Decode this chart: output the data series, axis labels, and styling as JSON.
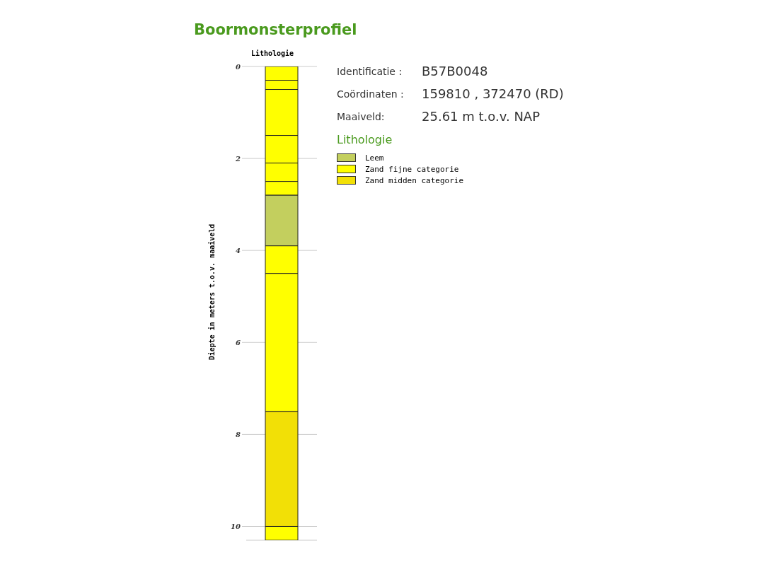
{
  "chart_data": {
    "type": "bar",
    "title": "Boormonsterprofiel",
    "xlabel": "Lithologie",
    "ylabel": "Diepte in meters t.o.v. maaiveld",
    "legend_title": "Lithologie",
    "annotations": [
      "Identificatie :",
      "B57B0048",
      "Coördinaten :",
      "159810 , 372470 (RD)",
      "Maaiveld:",
      "25.61 m t.o.v. NAP"
    ],
    "categories": [
      null
    ],
    "stacked": true,
    "ylim": [
      10.3,
      0
    ],
    "yticks": [
      0,
      2,
      4,
      6,
      8,
      10
    ],
    "grid": "y",
    "legend": "right",
    "series": [
      {
        "name": "Zand fijne categorie",
        "color": "#ffff00",
        "values": [
          0.3
        ]
      },
      {
        "color": "#ffff00",
        "values": [
          0.2
        ]
      },
      {
        "color": "#ffff00",
        "values": [
          1.0
        ]
      },
      {
        "color": "#ffff00",
        "values": [
          0.6
        ]
      },
      {
        "color": "#ffff00",
        "values": [
          0.4
        ]
      },
      {
        "color": "#ffff00",
        "values": [
          0.3
        ]
      },
      {
        "name": "Leem",
        "color": "#c3cf5e",
        "values": [
          1.1
        ]
      },
      {
        "color": "#ffff00",
        "values": [
          0.6
        ]
      },
      {
        "color": "#ffff00",
        "values": [
          3.0
        ]
      },
      {
        "name": "Zand midden categorie",
        "color": "#f2e006",
        "values": [
          2.5
        ]
      },
      {
        "color": "#ffff00",
        "values": [
          0.3
        ]
      }
    ]
  }
}
